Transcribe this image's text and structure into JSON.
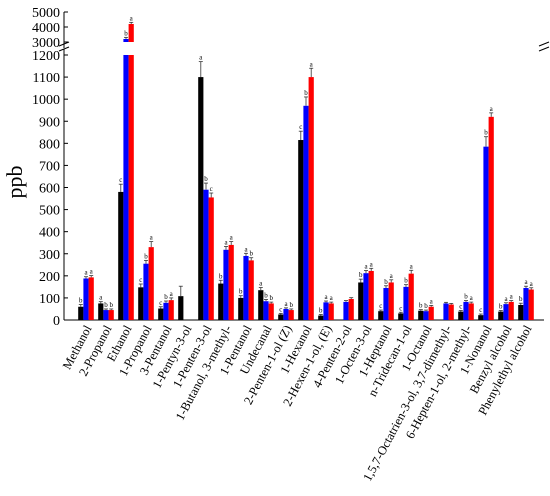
{
  "chart_data": {
    "type": "bar",
    "ylabel": "ppb",
    "xlabel": "",
    "title": "",
    "broken_axis": true,
    "lower_range": [
      0,
      1200
    ],
    "upper_range": [
      3000,
      5000
    ],
    "lower_ticks": [
      "0",
      "100",
      "200",
      "300",
      "400",
      "500",
      "600",
      "700",
      "800",
      "900",
      "1000",
      "1100",
      "1200"
    ],
    "upper_ticks": [
      "3000",
      "4000",
      "5000"
    ],
    "colors": [
      "#000000",
      "#0000ff",
      "#ff0000"
    ],
    "categories": [
      "Methanol",
      "2-Propanol",
      "Ethanol",
      "1-Propanol",
      "3-Pentanol",
      "1-Pentyn-3-ol",
      "1-Penten-3-ol",
      "1-Butanol, 3-methyl-",
      "1-Pentanol",
      "Undecanal",
      "2-Penten-1-ol (Z)",
      "1-Hexanol",
      "2-Hexen-1-ol, (E)",
      "4-Penten-2-ol",
      "1-Octen-3-ol",
      "1-Heptanol",
      "n-Tridecan-1-ol",
      "1-Octanol",
      "1,5,7-Octatrien-3-ol, 3,7-dimethyl-",
      "6-Hepten-1-ol, 2-methyl-",
      "1-Nonanol",
      "Benzyl alcohol",
      "Phenylethyl alcohol"
    ],
    "series": [
      {
        "values": [
          60,
          75,
          580,
          148,
          52,
          108,
          1100,
          165,
          100,
          135,
          25,
          815,
          20,
          0,
          170,
          40,
          30,
          42,
          0,
          38,
          22,
          38,
          68
        ],
        "errors": [
          10,
          8,
          35,
          15,
          8,
          45,
          70,
          15,
          10,
          12,
          5,
          40,
          5,
          0,
          15,
          5,
          5,
          5,
          0,
          5,
          5,
          5,
          8
        ],
        "sig": [
          "b",
          "a",
          "c",
          "c",
          "c",
          "",
          "a",
          "b",
          "b",
          "a",
          "c",
          "c",
          "b",
          "",
          "b",
          "c",
          "c",
          "b",
          "",
          "c",
          "c",
          "b",
          "b"
        ]
      },
      {
        "values": [
          188,
          45,
          3200,
          255,
          78,
          0,
          590,
          318,
          290,
          85,
          50,
          970,
          80,
          82,
          212,
          145,
          150,
          40,
          75,
          82,
          785,
          72,
          145
        ],
        "errors": [
          8,
          5,
          110,
          15,
          8,
          0,
          30,
          15,
          12,
          8,
          5,
          40,
          6,
          6,
          12,
          10,
          10,
          5,
          5,
          6,
          45,
          6,
          8
        ],
        "sig": [
          "a",
          "b",
          "b",
          "b",
          "b",
          "",
          "b",
          "a",
          "a",
          "b",
          "a",
          "b",
          "a",
          "",
          "a",
          "b",
          "b",
          "b",
          "",
          "b",
          "b",
          "a",
          "a"
        ]
      },
      {
        "values": [
          193,
          45,
          4200,
          330,
          90,
          0,
          555,
          340,
          270,
          75,
          45,
          1100,
          75,
          95,
          222,
          170,
          210,
          60,
          70,
          75,
          920,
          82,
          138
        ],
        "errors": [
          8,
          5,
          110,
          25,
          10,
          0,
          20,
          15,
          12,
          6,
          5,
          40,
          6,
          6,
          12,
          12,
          15,
          6,
          5,
          6,
          18,
          6,
          8
        ],
        "sig": [
          "a",
          "b",
          "a",
          "a",
          "a",
          "",
          "c",
          "a",
          "b",
          "b",
          "b",
          "a",
          "a",
          "",
          "a",
          "a",
          "a",
          "a",
          "",
          "a",
          "a",
          "a",
          "a"
        ]
      }
    ]
  }
}
